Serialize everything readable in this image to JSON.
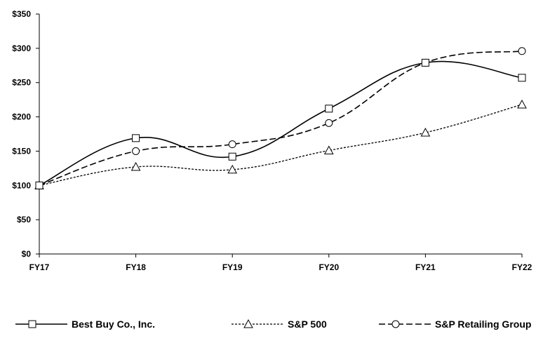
{
  "chart_data": {
    "type": "line",
    "categories": [
      "FY17",
      "FY18",
      "FY19",
      "FY20",
      "FY21",
      "FY22"
    ],
    "ylim": [
      0,
      350
    ],
    "y_ticks": [
      {
        "value": 0,
        "label": "$0"
      },
      {
        "value": 50,
        "label": "$50"
      },
      {
        "value": 100,
        "label": "$100"
      },
      {
        "value": 150,
        "label": "$150"
      },
      {
        "value": 200,
        "label": "$200"
      },
      {
        "value": 250,
        "label": "$250"
      },
      {
        "value": 300,
        "label": "$300"
      },
      {
        "value": 350,
        "label": "$350"
      }
    ],
    "series": [
      {
        "name": "Best Buy Co., Inc.",
        "values": [
          100,
          169,
          142,
          212,
          279,
          257
        ],
        "marker": "square",
        "dash": "solid"
      },
      {
        "name": "S&P 500",
        "values": [
          100,
          127,
          123,
          151,
          177,
          218
        ],
        "marker": "triangle",
        "dash": "dotted"
      },
      {
        "name": "S&P Retailing Group",
        "values": [
          100,
          150,
          160,
          191,
          279,
          296
        ],
        "marker": "circle",
        "dash": "dashed"
      }
    ],
    "title": "",
    "xlabel": "",
    "ylabel": "",
    "grid": false,
    "legend_position": "bottom"
  }
}
